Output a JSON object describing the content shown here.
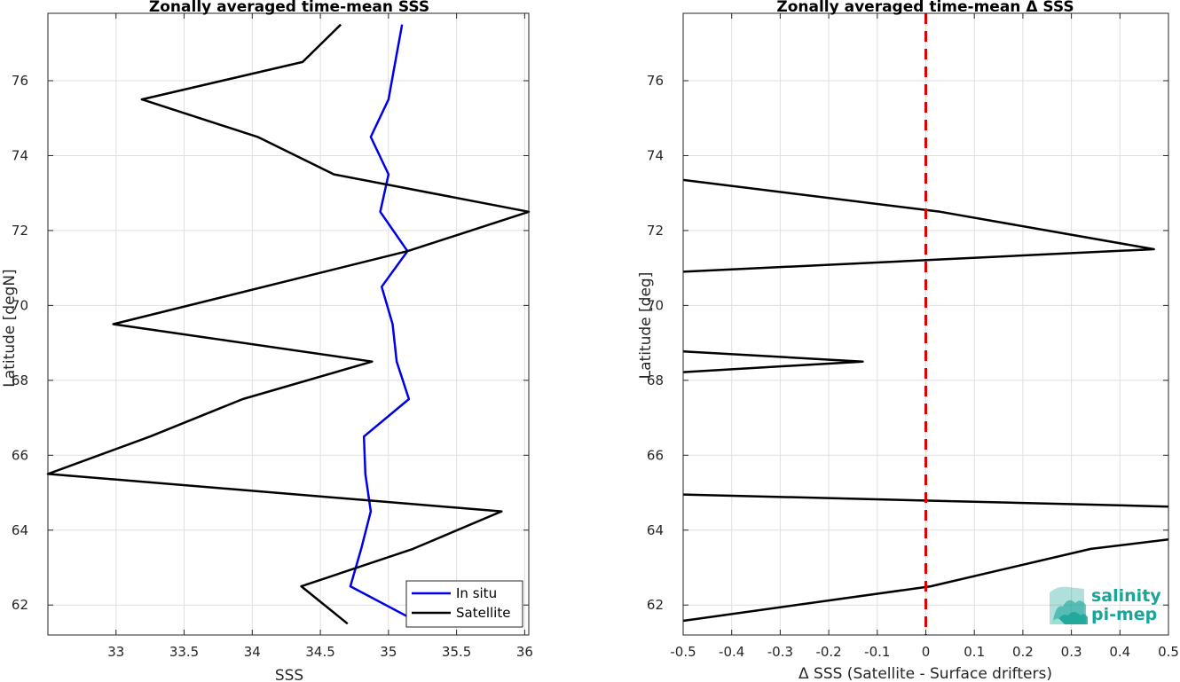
{
  "chart_data": [
    {
      "type": "line",
      "title": "Zonally averaged time-mean SSS",
      "xlabel": "SSS",
      "ylabel": "Latitude [degN]",
      "xlim": [
        32.5,
        36.03
      ],
      "ylim": [
        61.2,
        77.8
      ],
      "xticks": [
        33,
        33.5,
        34,
        34.5,
        35,
        35.5,
        36
      ],
      "xtick_labels": [
        "33",
        "33.5",
        "34",
        "34.5",
        "35",
        "35.5",
        "36"
      ],
      "yticks": [
        62,
        64,
        66,
        68,
        70,
        72,
        74,
        76
      ],
      "ytick_labels": [
        "62",
        "64",
        "66",
        "68",
        "70",
        "72",
        "74",
        "76"
      ],
      "grid": true,
      "legend": "bottom-right",
      "series": [
        {
          "name": "In situ",
          "color": "#0000e6",
          "points": [
            [
              35.1,
              77.5
            ],
            [
              35.05,
              76.5
            ],
            [
              35.0,
              75.5
            ],
            [
              34.87,
              74.5
            ],
            [
              35.0,
              73.5
            ],
            [
              34.94,
              72.5
            ],
            [
              35.14,
              71.45
            ],
            [
              34.95,
              70.5
            ],
            [
              35.03,
              69.5
            ],
            [
              35.06,
              68.5
            ],
            [
              35.15,
              67.5
            ],
            [
              34.82,
              66.5
            ],
            [
              34.83,
              65.5
            ],
            [
              34.87,
              64.5
            ],
            [
              34.8,
              63.5
            ],
            [
              34.72,
              62.5
            ],
            [
              35.24,
              61.5
            ]
          ]
        },
        {
          "name": "Satellite",
          "color": "#000000",
          "points": [
            [
              34.65,
              77.5
            ],
            [
              34.37,
              76.5
            ],
            [
              33.19,
              75.5
            ],
            [
              34.04,
              74.5
            ],
            [
              34.6,
              73.5
            ],
            [
              36.03,
              72.5
            ],
            [
              35.14,
              71.45
            ],
            [
              32.98,
              69.5
            ],
            [
              34.88,
              68.5
            ],
            [
              33.93,
              67.5
            ],
            [
              33.25,
              66.5
            ],
            [
              32.5,
              65.5
            ],
            [
              35.83,
              64.5
            ],
            [
              35.18,
              63.5
            ],
            [
              34.36,
              62.5
            ],
            [
              34.7,
              61.5
            ]
          ]
        }
      ]
    },
    {
      "type": "line",
      "title": "Zonally averaged time-mean Δ SSS",
      "xlabel": "Δ SSS (Satellite - Surface drifters)",
      "ylabel": "Latitude [deg]",
      "xlim": [
        -0.5,
        0.5
      ],
      "ylim": [
        61.2,
        77.8
      ],
      "xticks": [
        -0.5,
        -0.4,
        -0.3,
        -0.2,
        -0.1,
        0,
        0.1,
        0.2,
        0.3,
        0.4,
        0.5
      ],
      "xtick_labels": [
        "-0.5",
        "-0.4",
        "-0.3",
        "-0.2",
        "-0.1",
        "0",
        "0.1",
        "0.2",
        "0.3",
        "0.4",
        "0.5"
      ],
      "yticks": [
        62,
        64,
        66,
        68,
        70,
        72,
        74,
        76
      ],
      "ytick_labels": [
        "62",
        "64",
        "66",
        "68",
        "70",
        "72",
        "74",
        "76"
      ],
      "grid": true,
      "reference_line": {
        "x": 0,
        "color": "#e00000",
        "style": "dashed"
      },
      "series": [
        {
          "color": "#000000",
          "segments": [
            [
              [
                -0.5,
                73.35
              ],
              [
                0.03,
                72.5
              ],
              [
                0.47,
                71.5
              ],
              [
                -0.5,
                70.9
              ]
            ],
            [
              [
                -0.5,
                68.77
              ],
              [
                -0.13,
                68.5
              ],
              [
                -0.5,
                68.22
              ]
            ],
            [
              [
                -0.5,
                64.95
              ],
              [
                0.5,
                64.63
              ]
            ],
            [
              [
                -0.5,
                61.58
              ],
              [
                0.01,
                62.5
              ],
              [
                0.34,
                63.5
              ],
              [
                0.5,
                63.75
              ]
            ]
          ]
        }
      ]
    }
  ],
  "logo": {
    "line1": "salinity",
    "line2": "pi-mep",
    "color": "#1aa59a"
  }
}
